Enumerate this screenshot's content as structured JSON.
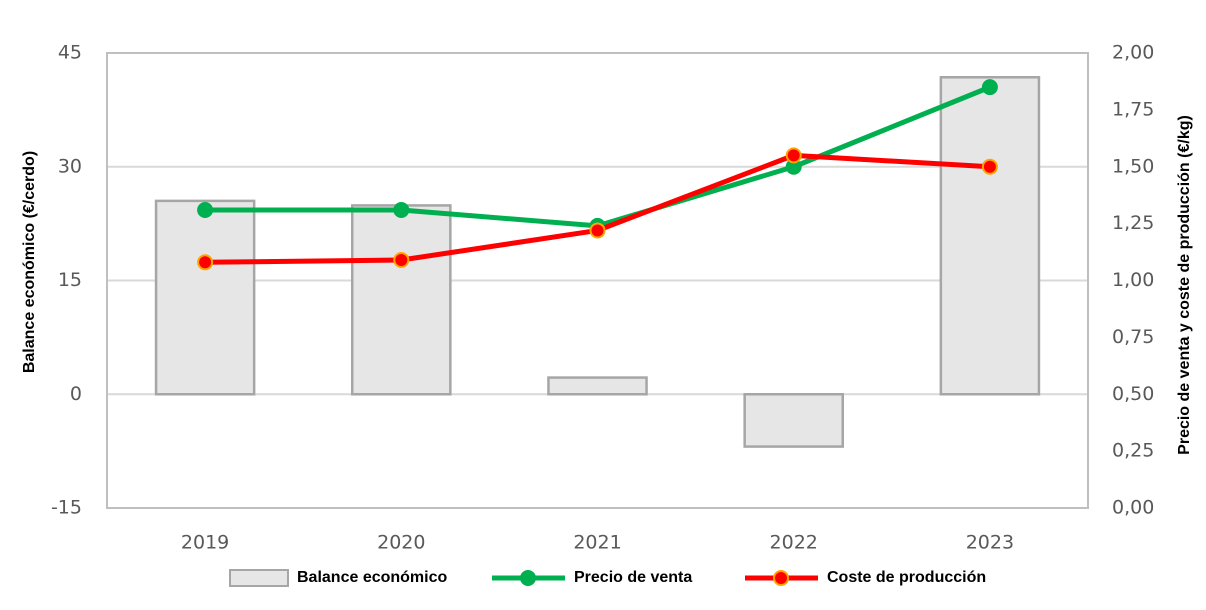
{
  "chart_data": {
    "type": "combo",
    "categories": [
      "2019",
      "2020",
      "2021",
      "2022",
      "2023"
    ],
    "y_label": "Balance económico (€/cerdo)",
    "y2_label": "Precio de venta y coste de producción (€/kg)",
    "ylim": [
      -15,
      45
    ],
    "yticks": [
      -15,
      0,
      15,
      30,
      45
    ],
    "y2lim": [
      0,
      2
    ],
    "y2ticks": [
      {
        "value": 0,
        "label": "0,00"
      },
      {
        "value": 0.25,
        "label": "0,25"
      },
      {
        "value": 0.5,
        "label": "0,50"
      },
      {
        "value": 0.75,
        "label": "0,75"
      },
      {
        "value": 1,
        "label": "1,00"
      },
      {
        "value": 1.25,
        "label": "1,25"
      },
      {
        "value": 1.5,
        "label": "1,50"
      },
      {
        "value": 1.75,
        "label": "1,75"
      },
      {
        "value": 2,
        "label": "2,00"
      }
    ],
    "grid": true,
    "legend": "bottom",
    "series": [
      {
        "name": "Balance económico",
        "type": "bar",
        "color": "#e6e6e6",
        "values": [
          25.5,
          24.9,
          2.2,
          -6.9,
          41.8
        ]
      },
      {
        "name": "Precio de venta",
        "type": "line",
        "axis": "y2",
        "color": "#00b050",
        "values": [
          1.31,
          1.31,
          1.24,
          1.5,
          1.85
        ]
      },
      {
        "name": "Coste de producción",
        "type": "line",
        "axis": "y2",
        "color": "#ff0000",
        "values": [
          1.08,
          1.09,
          1.22,
          1.55,
          1.5
        ]
      }
    ]
  }
}
